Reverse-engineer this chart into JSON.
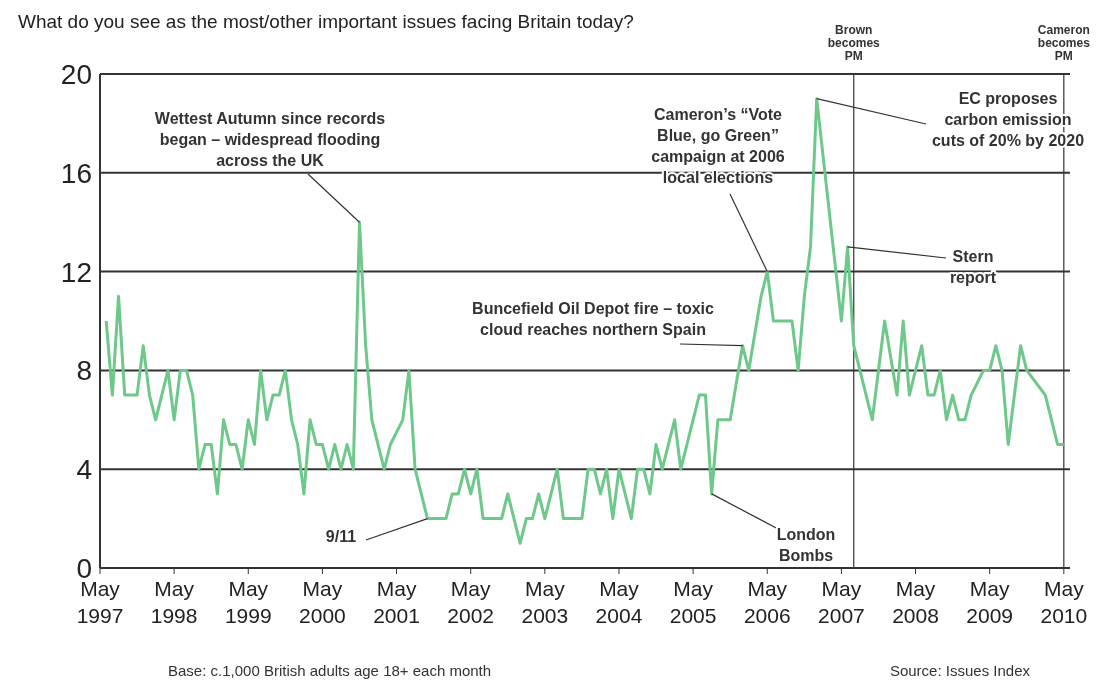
{
  "chart_data": {
    "type": "line",
    "title": "What do you see as the most/other important issues facing Britain today?",
    "x": [
      "1997-06",
      "1997-07",
      "1997-08",
      "1997-09",
      "1997-11",
      "1997-12",
      "1998-01",
      "1998-02",
      "1998-04",
      "1998-05",
      "1998-06",
      "1998-07",
      "1998-08",
      "1998-09",
      "1998-10",
      "1998-11",
      "1998-12",
      "1999-01",
      "1999-02",
      "1999-03",
      "1999-04",
      "1999-05",
      "1999-06",
      "1999-07",
      "1999-08",
      "1999-09",
      "1999-10",
      "1999-11",
      "1999-12",
      "2000-01",
      "2000-02",
      "2000-03",
      "2000-04",
      "2000-05",
      "2000-06",
      "2000-07",
      "2000-08",
      "2000-09",
      "2000-10",
      "2000-11",
      "2000-12",
      "2001-01",
      "2001-03",
      "2001-04",
      "2001-06",
      "2001-07",
      "2001-08",
      "2001-10",
      "2002-01",
      "2002-02",
      "2002-03",
      "2002-04",
      "2002-05",
      "2002-06",
      "2002-07",
      "2002-10",
      "2002-11",
      "2003-01",
      "2003-02",
      "2003-03",
      "2003-04",
      "2003-05",
      "2003-07",
      "2003-08",
      "2003-11",
      "2003-12",
      "2004-01",
      "2004-02",
      "2004-03",
      "2004-04",
      "2004-05",
      "2004-07",
      "2004-08",
      "2004-09",
      "2004-10",
      "2004-11",
      "2004-12",
      "2005-02",
      "2005-03",
      "2005-06",
      "2005-07",
      "2005-08",
      "2005-09",
      "2005-11",
      "2006-01",
      "2006-02",
      "2006-04",
      "2006-05",
      "2006-06",
      "2006-09",
      "2006-10",
      "2006-11",
      "2006-12",
      "2007-01",
      "2007-05",
      "2007-06",
      "2007-07",
      "2007-10",
      "2007-12",
      "2008-02",
      "2008-03",
      "2008-04",
      "2008-06",
      "2008-07",
      "2008-08",
      "2008-09",
      "2008-10",
      "2008-11",
      "2008-12",
      "2009-01",
      "2009-02",
      "2009-04",
      "2009-05",
      "2009-06",
      "2009-07",
      "2009-08",
      "2009-10",
      "2009-11",
      "2010-02",
      "2010-04",
      "2010-05"
    ],
    "values": [
      10,
      7,
      11,
      7,
      7,
      9,
      7,
      6,
      8,
      6,
      8,
      8,
      7,
      4,
      5,
      5,
      3,
      6,
      5,
      5,
      4,
      6,
      5,
      8,
      6,
      7,
      7,
      8,
      6,
      5,
      3,
      6,
      5,
      5,
      4,
      5,
      4,
      5,
      4,
      14,
      9,
      6,
      4,
      5,
      6,
      8,
      4,
      2,
      2,
      3,
      3,
      4,
      3,
      4,
      2,
      2,
      3,
      1,
      2,
      2,
      3,
      2,
      4,
      2,
      2,
      4,
      4,
      3,
      4,
      2,
      4,
      2,
      4,
      4,
      3,
      5,
      4,
      6,
      4,
      7,
      7,
      3,
      6,
      6,
      9,
      8,
      11,
      12,
      10,
      10,
      8,
      11,
      13,
      19,
      10,
      13,
      9,
      6,
      10,
      7,
      10,
      7,
      9,
      7,
      7,
      8,
      6,
      7,
      6,
      6,
      7,
      8,
      8,
      9,
      8,
      5,
      9,
      8,
      7,
      5,
      5
    ],
    "color": "#6dc88a",
    "marker": "none",
    "line_style": "solid",
    "xlim": [
      "1997-05",
      "2010-06"
    ],
    "xticks": [
      {
        "value": "1997-05",
        "label": "May 1997"
      },
      {
        "value": "1998-05",
        "label": "May 1998"
      },
      {
        "value": "1999-05",
        "label": "May 1999"
      },
      {
        "value": "2000-05",
        "label": "May 2000"
      },
      {
        "value": "2001-05",
        "label": "May 2001"
      },
      {
        "value": "2002-05",
        "label": "May 2002"
      },
      {
        "value": "2003-05",
        "label": "May 2003"
      },
      {
        "value": "2004-05",
        "label": "May 2004"
      },
      {
        "value": "2005-05",
        "label": "May 2005"
      },
      {
        "value": "2006-05",
        "label": "May 2006"
      },
      {
        "value": "2007-05",
        "label": "May 2007"
      },
      {
        "value": "2008-05",
        "label": "May 2008"
      },
      {
        "value": "2009-05",
        "label": "May 2009"
      },
      {
        "value": "2010-05",
        "label": "May 2010"
      }
    ],
    "ylim": [
      0,
      20
    ],
    "yticks": [
      0,
      4,
      8,
      12,
      16,
      20
    ],
    "grid": "y",
    "ref_lines": [
      {
        "axis": "x",
        "value": "2007-07",
        "label": "Brown becomes PM"
      },
      {
        "axis": "x",
        "value": "2010-05",
        "label": "Cameron becomes PM"
      }
    ],
    "annotations": [
      {
        "text": "Wettest Autumn since records began – widespread flooding across the UK",
        "x": "2000-11",
        "y": 14
      },
      {
        "text": "9/11",
        "x": "2001-10",
        "y": 2
      },
      {
        "text": "Cameron’s “Vote Blue, go Green” campaign at 2006 local elections",
        "x": "2006-05",
        "y": 12
      },
      {
        "text": "Buncefield Oil Depot fire – toxic cloud reaches northern Spain",
        "x": "2006-01",
        "y": 9
      },
      {
        "text": "London Bombs",
        "x": "2005-08",
        "y": 3
      },
      {
        "text": "EC proposes carbon emission cuts of 20% by 2020",
        "x": "2007-01",
        "y": 19
      },
      {
        "text": "Stern report",
        "x": "2007-06",
        "y": 13
      },
      "Base: c.1,000 British adults age 18+ each month",
      "Source: Issues Index"
    ]
  }
}
